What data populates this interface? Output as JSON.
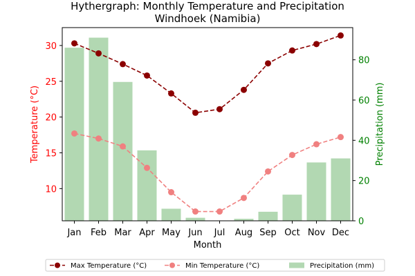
{
  "chart_data": {
    "type": "bar+line",
    "title": "Hythergraph: Monthly Temperature and Precipitation",
    "subtitle": "Windhoek (Namibia)",
    "xlabel": "Month",
    "ylabel_left": "Temperature (°C)",
    "ylabel_right": "Precipitation (mm)",
    "categories": [
      "Jan",
      "Feb",
      "Mar",
      "Apr",
      "May",
      "Jun",
      "Jul",
      "Aug",
      "Sep",
      "Oct",
      "Nov",
      "Dec"
    ],
    "ylim_left": [
      5.5,
      32.5
    ],
    "ylim_right": [
      0,
      96
    ],
    "yticks_left": [
      10,
      15,
      20,
      25,
      30
    ],
    "yticks_right": [
      0,
      20,
      40,
      60,
      80
    ],
    "grid": false,
    "legend_position": "bottom",
    "series": [
      {
        "name": "Max Temperature (°C)",
        "kind": "line",
        "axis": "left",
        "style": "dashed-marker",
        "color": "#8b0000",
        "values": [
          30.3,
          28.9,
          27.4,
          25.8,
          23.3,
          20.6,
          21.1,
          23.8,
          27.5,
          29.3,
          30.2,
          31.4
        ]
      },
      {
        "name": "Min Temperature (°C)",
        "kind": "line",
        "axis": "left",
        "style": "dashed-marker",
        "color": "#f08080",
        "values": [
          17.7,
          17.0,
          15.9,
          12.9,
          9.5,
          6.8,
          6.8,
          8.7,
          12.4,
          14.7,
          16.2,
          17.2
        ]
      },
      {
        "name": "Precipitation (mm)",
        "kind": "bar",
        "axis": "right",
        "color": "#b2d8b2",
        "values": [
          86,
          91,
          69,
          35,
          6,
          1.5,
          0,
          1,
          4.5,
          13,
          29,
          31
        ]
      }
    ],
    "colors": {
      "left_axis": "#ff0000",
      "right_axis": "#008000"
    }
  }
}
